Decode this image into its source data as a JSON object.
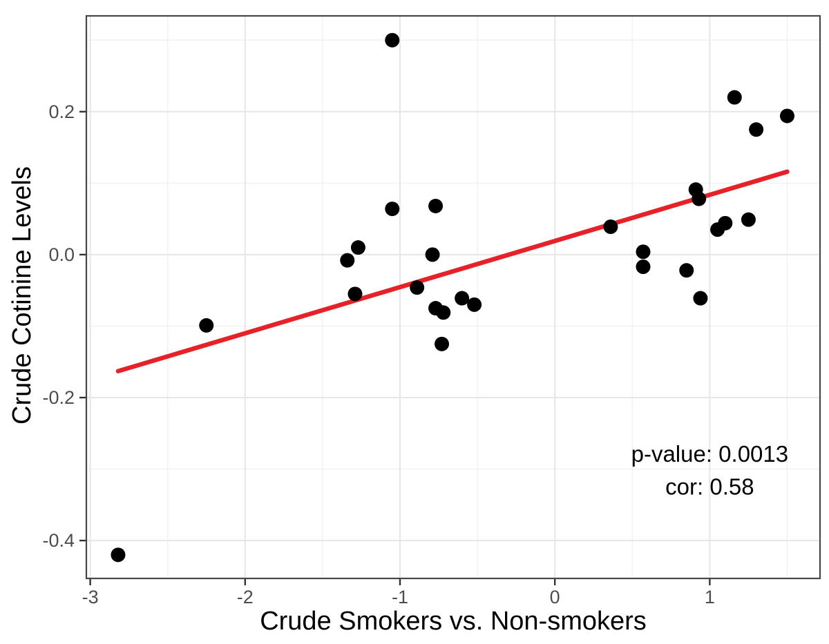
{
  "chart_data": {
    "type": "scatter",
    "title": "",
    "xlabel": "Crude Smokers vs. Non-smokers",
    "ylabel": "Crude Cotinine Levels",
    "xlim": [
      -3.025,
      1.712
    ],
    "ylim": [
      -0.453,
      0.334
    ],
    "grid": true,
    "legend": "none",
    "x_ticks": {
      "values": [
        -3,
        -2,
        -1,
        0,
        1
      ],
      "labels": [
        "-3",
        "-2",
        "-1",
        "0",
        "1"
      ]
    },
    "y_ticks": {
      "values": [
        0.2,
        0.0,
        -0.2,
        -0.4
      ],
      "labels": [
        "0.2",
        "0.0",
        "-0.2",
        "-0.4"
      ]
    },
    "x_minor": [
      -2.5,
      -1.5,
      -0.5,
      0.5,
      1.5
    ],
    "y_minor": [
      0.3,
      0.1,
      -0.1,
      -0.3
    ],
    "points": [
      [
        -2.82,
        -0.42
      ],
      [
        -2.25,
        -0.099
      ],
      [
        -1.34,
        -0.008
      ],
      [
        -1.29,
        -0.055
      ],
      [
        -1.27,
        0.01
      ],
      [
        -1.05,
        0.3
      ],
      [
        -1.05,
        0.064
      ],
      [
        -0.89,
        -0.046
      ],
      [
        -0.79,
        0.0
      ],
      [
        -0.77,
        0.068
      ],
      [
        -0.77,
        -0.075
      ],
      [
        -0.72,
        -0.081
      ],
      [
        -0.73,
        -0.125
      ],
      [
        -0.6,
        -0.061
      ],
      [
        -0.52,
        -0.07
      ],
      [
        0.36,
        0.039
      ],
      [
        0.57,
        0.004
      ],
      [
        0.57,
        -0.017
      ],
      [
        0.85,
        -0.022
      ],
      [
        0.91,
        0.091
      ],
      [
        0.93,
        0.078
      ],
      [
        0.94,
        -0.061
      ],
      [
        1.05,
        0.035
      ],
      [
        1.1,
        0.044
      ],
      [
        1.25,
        0.049
      ],
      [
        1.16,
        0.22
      ],
      [
        1.3,
        0.175
      ],
      [
        1.5,
        0.194
      ]
    ],
    "regression_line": {
      "x1": -2.82,
      "y1": -0.163,
      "x2": 1.5,
      "y2": 0.116
    },
    "annotations": [
      {
        "id": "p-value",
        "x": 1.0,
        "y": -0.279,
        "text": "p-value: 0.0013"
      },
      {
        "id": "cor",
        "x": 1.0,
        "y": -0.325,
        "text": "cor: 0.58"
      }
    ],
    "colors": {
      "point": "#000000",
      "line": "#e62128",
      "grid_major": "#e6e6e6",
      "grid_minor": "#f1f1f1",
      "panel_border": "#474747",
      "tick_mark": "#333333",
      "tick_label": "#4d4d4d",
      "text": "#000000",
      "background": "#ffffff"
    }
  }
}
